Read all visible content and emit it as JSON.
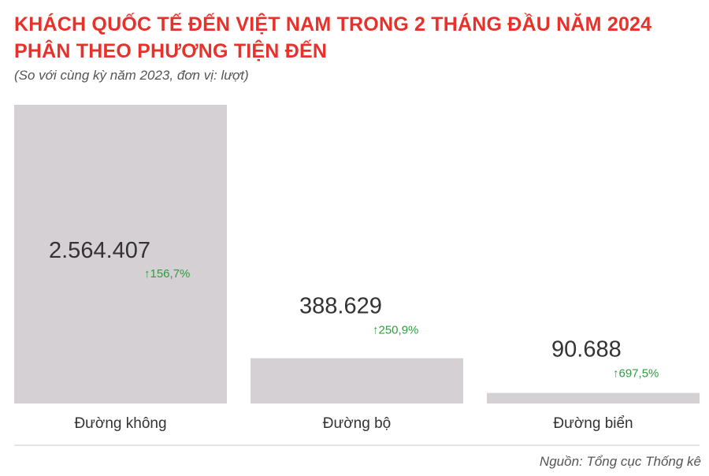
{
  "title_line1": "KHÁCH QUỐC TẾ ĐẾN VIỆT NAM TRONG 2 THÁNG ĐẦU NĂM 2024",
  "title_line2": "PHÂN THEO PHƯƠNG TIỆN ĐẾN",
  "subtitle": "(So với cùng kỳ năm 2023, đơn vị: lượt)",
  "source": "Nguồn: Tổng cục Thống kê",
  "colors": {
    "title": "#e8312a",
    "bar": "#d4d0d3",
    "increase": "#2e9e3f",
    "text": "#333333"
  },
  "chart_data": {
    "type": "bar",
    "categories": [
      "Đường không",
      "Đường bộ",
      "Đường biển"
    ],
    "values": [
      2564407,
      388629,
      90688
    ],
    "value_labels": [
      "2.564.407",
      "388.629",
      "90.688"
    ],
    "change_labels": [
      "↑156,7%",
      "↑250,9%",
      "↑697,5%"
    ],
    "title": "KHÁCH QUỐC TẾ ĐẾN VIỆT NAM TRONG 2 THÁNG ĐẦU NĂM 2024 PHÂN THEO PHƯƠNG TIỆN ĐẾN",
    "xlabel": "",
    "ylabel": "",
    "grid": false
  }
}
